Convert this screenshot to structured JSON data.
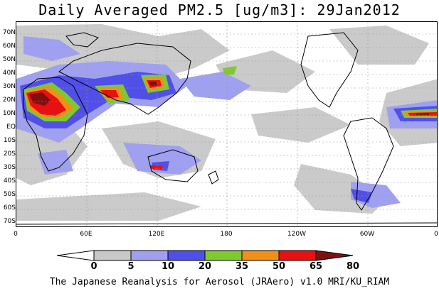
{
  "title": "Daily Averaged PM2.5 [ug/m3]: 29Jan2012",
  "credit": "The Japanese Reanalysis for Aerosol (JRAero) v1.0 MRI/KU_RIAM",
  "lat_labels": [
    "70N",
    "60N",
    "50N",
    "40N",
    "30N",
    "20N",
    "10N",
    "EQ",
    "10S",
    "20S",
    "30S",
    "40S",
    "50S",
    "60S",
    "70S"
  ],
  "lon_labels": [
    "0",
    "60E",
    "120E",
    "180",
    "120W",
    "60W",
    "0"
  ],
  "colorbar": {
    "levels": [
      "0",
      "5",
      "10",
      "20",
      "35",
      "50",
      "65",
      "80"
    ],
    "colors": [
      "#ffffff",
      "#c8c8c8",
      "#a0a0f0",
      "#5050e8",
      "#80c830",
      "#f09018",
      "#e81010",
      "#801010"
    ]
  }
}
